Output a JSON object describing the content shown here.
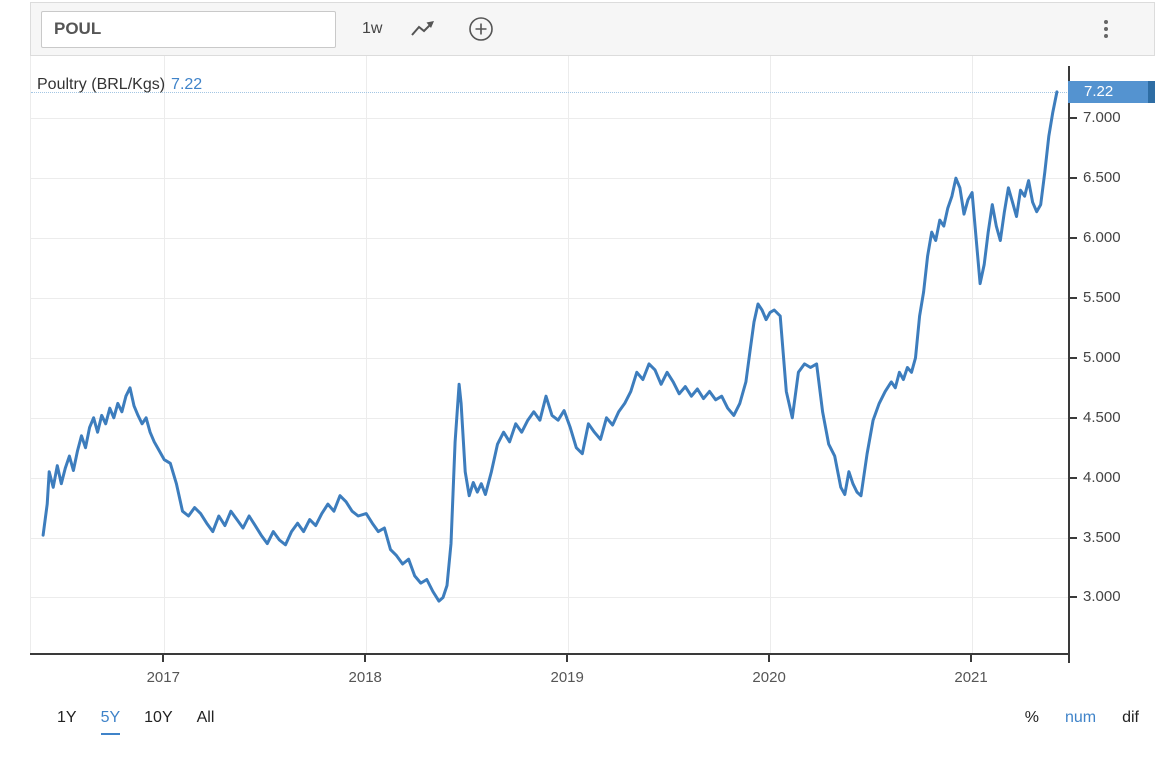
{
  "toolbar": {
    "symbol": "POUL",
    "interval": "1w"
  },
  "chart": {
    "title": "Poultry (BRL/Kgs)",
    "current_value": "7.22"
  },
  "colors": {
    "line": "#3d7dbd",
    "accent_text": "#3f83c9",
    "badge": "#5493d0",
    "badge_edge": "#2e6da4",
    "dotted": "#a3c6e4",
    "grid": "#ececec",
    "axis": "#3a3a3a"
  },
  "chart_data": {
    "type": "line",
    "title": "Poultry (BRL/Kgs)",
    "unit": "BRL/Kgs",
    "interval": "1w",
    "selected_range": "5Y",
    "last_value": 7.22,
    "last_value_label": "7.22",
    "x_domain": [
      2016.34,
      2021.48
    ],
    "y_domain": [
      2.52,
      7.52
    ],
    "grid": true,
    "legend": false,
    "y_ticks": [
      {
        "value": 3.0,
        "label": "3.000"
      },
      {
        "value": 3.5,
        "label": "3.500"
      },
      {
        "value": 4.0,
        "label": "4.000"
      },
      {
        "value": 4.5,
        "label": "4.500"
      },
      {
        "value": 5.0,
        "label": "5.000"
      },
      {
        "value": 5.5,
        "label": "5.500"
      },
      {
        "value": 6.0,
        "label": "6.000"
      },
      {
        "value": 6.5,
        "label": "6.500"
      },
      {
        "value": 7.0,
        "label": "7.000"
      }
    ],
    "x_ticks": [
      {
        "value": 2017,
        "label": "2017"
      },
      {
        "value": 2018,
        "label": "2018"
      },
      {
        "value": 2019,
        "label": "2019"
      },
      {
        "value": 2020,
        "label": "2020"
      },
      {
        "value": 2021,
        "label": "2021"
      }
    ],
    "series": [
      {
        "name": "Poultry (BRL/Kgs)",
        "color": "#3d7dbd",
        "points": [
          [
            2016.4,
            3.52
          ],
          [
            2016.42,
            3.78
          ],
          [
            2016.43,
            4.05
          ],
          [
            2016.45,
            3.92
          ],
          [
            2016.47,
            4.1
          ],
          [
            2016.49,
            3.95
          ],
          [
            2016.51,
            4.08
          ],
          [
            2016.53,
            4.18
          ],
          [
            2016.55,
            4.06
          ],
          [
            2016.57,
            4.22
          ],
          [
            2016.59,
            4.35
          ],
          [
            2016.61,
            4.25
          ],
          [
            2016.63,
            4.42
          ],
          [
            2016.65,
            4.5
          ],
          [
            2016.67,
            4.38
          ],
          [
            2016.69,
            4.52
          ],
          [
            2016.71,
            4.45
          ],
          [
            2016.73,
            4.58
          ],
          [
            2016.75,
            4.5
          ],
          [
            2016.77,
            4.62
          ],
          [
            2016.79,
            4.55
          ],
          [
            2016.81,
            4.68
          ],
          [
            2016.83,
            4.75
          ],
          [
            2016.85,
            4.6
          ],
          [
            2016.87,
            4.52
          ],
          [
            2016.89,
            4.45
          ],
          [
            2016.91,
            4.5
          ],
          [
            2016.93,
            4.38
          ],
          [
            2016.95,
            4.3
          ],
          [
            2016.97,
            4.24
          ],
          [
            2017.0,
            4.15
          ],
          [
            2017.03,
            4.12
          ],
          [
            2017.06,
            3.95
          ],
          [
            2017.09,
            3.72
          ],
          [
            2017.12,
            3.68
          ],
          [
            2017.15,
            3.75
          ],
          [
            2017.18,
            3.7
          ],
          [
            2017.21,
            3.62
          ],
          [
            2017.24,
            3.55
          ],
          [
            2017.27,
            3.68
          ],
          [
            2017.3,
            3.6
          ],
          [
            2017.33,
            3.72
          ],
          [
            2017.36,
            3.65
          ],
          [
            2017.39,
            3.58
          ],
          [
            2017.42,
            3.68
          ],
          [
            2017.45,
            3.6
          ],
          [
            2017.48,
            3.52
          ],
          [
            2017.51,
            3.45
          ],
          [
            2017.54,
            3.55
          ],
          [
            2017.57,
            3.48
          ],
          [
            2017.6,
            3.44
          ],
          [
            2017.63,
            3.55
          ],
          [
            2017.66,
            3.62
          ],
          [
            2017.69,
            3.55
          ],
          [
            2017.72,
            3.65
          ],
          [
            2017.75,
            3.6
          ],
          [
            2017.78,
            3.7
          ],
          [
            2017.81,
            3.78
          ],
          [
            2017.84,
            3.72
          ],
          [
            2017.87,
            3.85
          ],
          [
            2017.9,
            3.8
          ],
          [
            2017.93,
            3.72
          ],
          [
            2017.96,
            3.68
          ],
          [
            2018.0,
            3.7
          ],
          [
            2018.03,
            3.62
          ],
          [
            2018.06,
            3.55
          ],
          [
            2018.09,
            3.58
          ],
          [
            2018.12,
            3.4
          ],
          [
            2018.15,
            3.35
          ],
          [
            2018.18,
            3.28
          ],
          [
            2018.21,
            3.32
          ],
          [
            2018.24,
            3.18
          ],
          [
            2018.27,
            3.12
          ],
          [
            2018.3,
            3.15
          ],
          [
            2018.33,
            3.05
          ],
          [
            2018.36,
            2.97
          ],
          [
            2018.38,
            3.0
          ],
          [
            2018.4,
            3.1
          ],
          [
            2018.42,
            3.45
          ],
          [
            2018.44,
            4.3
          ],
          [
            2018.46,
            4.78
          ],
          [
            2018.47,
            4.62
          ],
          [
            2018.49,
            4.05
          ],
          [
            2018.51,
            3.85
          ],
          [
            2018.53,
            3.96
          ],
          [
            2018.55,
            3.88
          ],
          [
            2018.57,
            3.95
          ],
          [
            2018.59,
            3.86
          ],
          [
            2018.62,
            4.05
          ],
          [
            2018.65,
            4.28
          ],
          [
            2018.68,
            4.38
          ],
          [
            2018.71,
            4.3
          ],
          [
            2018.74,
            4.45
          ],
          [
            2018.77,
            4.38
          ],
          [
            2018.8,
            4.48
          ],
          [
            2018.83,
            4.55
          ],
          [
            2018.86,
            4.48
          ],
          [
            2018.89,
            4.68
          ],
          [
            2018.92,
            4.52
          ],
          [
            2018.95,
            4.48
          ],
          [
            2018.98,
            4.56
          ],
          [
            2019.01,
            4.42
          ],
          [
            2019.04,
            4.25
          ],
          [
            2019.07,
            4.2
          ],
          [
            2019.1,
            4.45
          ],
          [
            2019.13,
            4.38
          ],
          [
            2019.16,
            4.32
          ],
          [
            2019.19,
            4.5
          ],
          [
            2019.22,
            4.44
          ],
          [
            2019.25,
            4.55
          ],
          [
            2019.28,
            4.62
          ],
          [
            2019.31,
            4.72
          ],
          [
            2019.34,
            4.88
          ],
          [
            2019.37,
            4.82
          ],
          [
            2019.4,
            4.95
          ],
          [
            2019.43,
            4.9
          ],
          [
            2019.46,
            4.78
          ],
          [
            2019.49,
            4.88
          ],
          [
            2019.52,
            4.8
          ],
          [
            2019.55,
            4.7
          ],
          [
            2019.58,
            4.76
          ],
          [
            2019.61,
            4.68
          ],
          [
            2019.64,
            4.74
          ],
          [
            2019.67,
            4.66
          ],
          [
            2019.7,
            4.72
          ],
          [
            2019.73,
            4.65
          ],
          [
            2019.76,
            4.68
          ],
          [
            2019.79,
            4.58
          ],
          [
            2019.82,
            4.52
          ],
          [
            2019.85,
            4.62
          ],
          [
            2019.88,
            4.8
          ],
          [
            2019.9,
            5.05
          ],
          [
            2019.92,
            5.3
          ],
          [
            2019.94,
            5.45
          ],
          [
            2019.96,
            5.4
          ],
          [
            2019.98,
            5.32
          ],
          [
            2020.0,
            5.38
          ],
          [
            2020.02,
            5.4
          ],
          [
            2020.05,
            5.35
          ],
          [
            2020.08,
            4.72
          ],
          [
            2020.11,
            4.5
          ],
          [
            2020.14,
            4.88
          ],
          [
            2020.17,
            4.95
          ],
          [
            2020.2,
            4.92
          ],
          [
            2020.23,
            4.95
          ],
          [
            2020.26,
            4.55
          ],
          [
            2020.29,
            4.28
          ],
          [
            2020.32,
            4.18
          ],
          [
            2020.35,
            3.92
          ],
          [
            2020.37,
            3.86
          ],
          [
            2020.39,
            4.05
          ],
          [
            2020.41,
            3.95
          ],
          [
            2020.43,
            3.88
          ],
          [
            2020.45,
            3.85
          ],
          [
            2020.48,
            4.2
          ],
          [
            2020.51,
            4.48
          ],
          [
            2020.54,
            4.62
          ],
          [
            2020.57,
            4.72
          ],
          [
            2020.6,
            4.8
          ],
          [
            2020.62,
            4.75
          ],
          [
            2020.64,
            4.88
          ],
          [
            2020.66,
            4.82
          ],
          [
            2020.68,
            4.92
          ],
          [
            2020.7,
            4.88
          ],
          [
            2020.72,
            5.0
          ],
          [
            2020.74,
            5.35
          ],
          [
            2020.76,
            5.55
          ],
          [
            2020.78,
            5.85
          ],
          [
            2020.8,
            6.05
          ],
          [
            2020.82,
            5.98
          ],
          [
            2020.84,
            6.15
          ],
          [
            2020.86,
            6.1
          ],
          [
            2020.88,
            6.25
          ],
          [
            2020.9,
            6.35
          ],
          [
            2020.92,
            6.5
          ],
          [
            2020.94,
            6.42
          ],
          [
            2020.96,
            6.2
          ],
          [
            2020.98,
            6.32
          ],
          [
            2021.0,
            6.38
          ],
          [
            2021.02,
            6.0
          ],
          [
            2021.04,
            5.62
          ],
          [
            2021.06,
            5.78
          ],
          [
            2021.08,
            6.05
          ],
          [
            2021.1,
            6.28
          ],
          [
            2021.12,
            6.1
          ],
          [
            2021.14,
            5.98
          ],
          [
            2021.16,
            6.22
          ],
          [
            2021.18,
            6.42
          ],
          [
            2021.2,
            6.3
          ],
          [
            2021.22,
            6.18
          ],
          [
            2021.24,
            6.4
          ],
          [
            2021.26,
            6.35
          ],
          [
            2021.28,
            6.48
          ],
          [
            2021.3,
            6.3
          ],
          [
            2021.32,
            6.22
          ],
          [
            2021.34,
            6.28
          ],
          [
            2021.36,
            6.55
          ],
          [
            2021.38,
            6.85
          ],
          [
            2021.4,
            7.05
          ],
          [
            2021.42,
            7.22
          ]
        ]
      }
    ]
  },
  "bottom_bar": {
    "ranges": [
      {
        "label": "1Y",
        "active": false
      },
      {
        "label": "5Y",
        "active": true
      },
      {
        "label": "10Y",
        "active": false
      },
      {
        "label": "All",
        "active": false
      }
    ],
    "modes": [
      {
        "label": "%",
        "active": false
      },
      {
        "label": "num",
        "active": true
      },
      {
        "label": "dif",
        "active": false
      }
    ]
  }
}
